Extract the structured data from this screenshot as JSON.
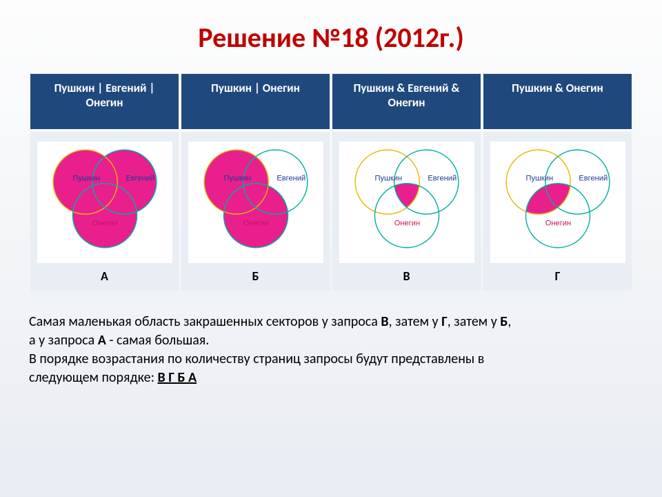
{
  "title": {
    "text": "Решение №18 (2012г.)",
    "color": "#c00000",
    "fontsize": 40
  },
  "table": {
    "header_bg": "#1f497d",
    "header_fg": "#ffffff",
    "cell_bg": "#e9edf4",
    "columns": [
      {
        "label": "Пушкин | Евгений | Онегин",
        "letter": "А",
        "fill": {
          "A": true,
          "B": true,
          "C": true,
          "AB": true,
          "AC": true,
          "BC": true,
          "ABC": true
        }
      },
      {
        "label": "Пушкин | Онегин",
        "letter": "Б",
        "fill": {
          "A": true,
          "B": false,
          "C": true,
          "AB": true,
          "AC": true,
          "BC": true,
          "ABC": true
        }
      },
      {
        "label": "Пушкин & Евгений & Онегин",
        "letter": "В",
        "fill": {
          "A": false,
          "B": false,
          "C": false,
          "AB": false,
          "AC": false,
          "BC": false,
          "ABC": true
        }
      },
      {
        "label": "Пушкин & Онегин",
        "letter": "Г",
        "fill": {
          "A": false,
          "B": false,
          "C": false,
          "AB": false,
          "AC": true,
          "BC": false,
          "ABC": true
        }
      }
    ]
  },
  "venn": {
    "circle_labels": {
      "A": "Пушкин",
      "B": "Евгений",
      "C": "Онегин"
    },
    "label_colors": {
      "A": "#1f3a93",
      "B": "#1f3a93",
      "C": "#c0145a"
    },
    "stroke_colors": {
      "A": "#e6b800",
      "B": "#00b0a0",
      "C": "#00b0a0"
    },
    "fill_color": "#e6007e",
    "fill_opacity": 0.88,
    "bg": "#ffffff",
    "radius": 46,
    "centers": {
      "A": [
        62,
        56
      ],
      "B": [
        118,
        56
      ],
      "C": [
        90,
        104
      ]
    },
    "label_fontsize": 11
  },
  "explanation": {
    "line1_a": "Самая маленькая область закрашенных секторов у запроса ",
    "line1_b": "В",
    "line1_c": ", затем у ",
    "line1_d": "Г",
    "line1_e": ", затем у ",
    "line1_f": "Б",
    "line1_g": ",",
    "line2_a": "а у запроса ",
    "line2_b": "А",
    "line2_c": " - самая большая.",
    "line3": "В порядке возрастания по количеству страниц запросы будут представлены в",
    "line4_a": "следующем порядке: ",
    "line4_b": "В Г Б А",
    "fontsize": 20
  }
}
